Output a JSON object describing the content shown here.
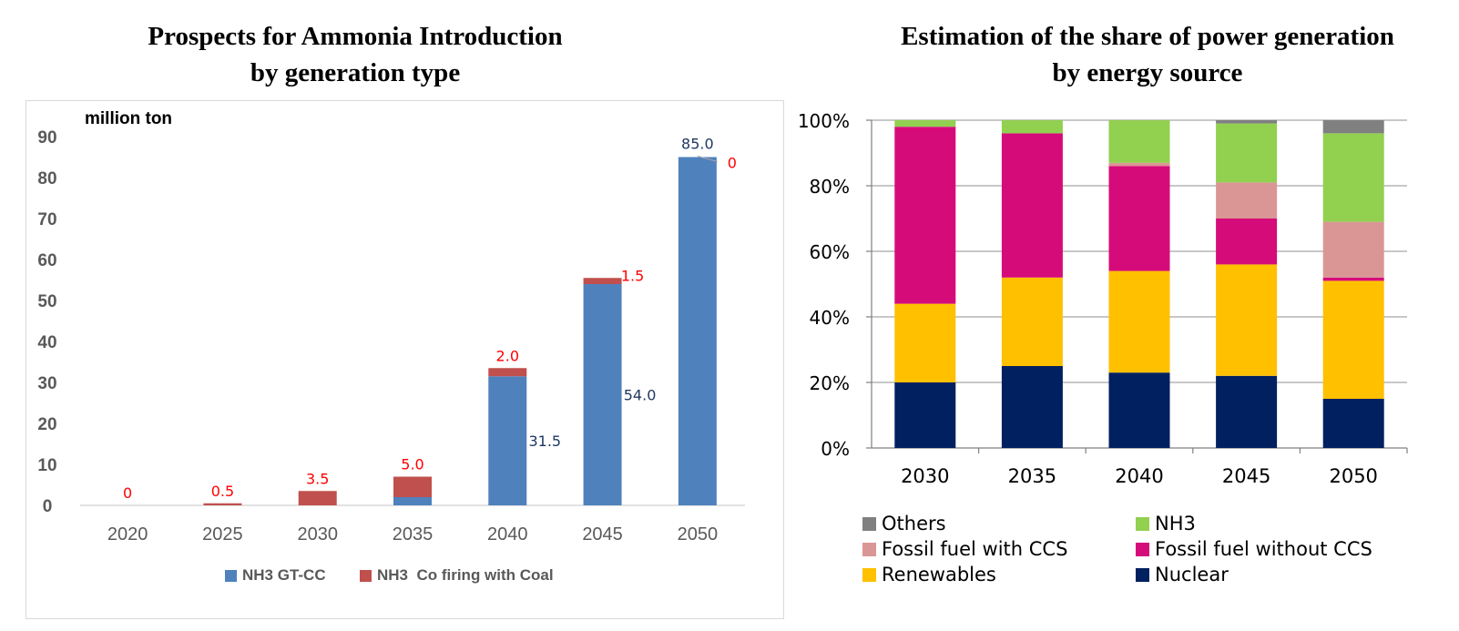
{
  "chart_data": [
    {
      "type": "bar",
      "stacked": true,
      "title_line1": "Prospects for Ammonia Introduction",
      "title_line2": "by generation type",
      "ylabel": "million ton",
      "ylim": [
        0,
        90
      ],
      "yticks": [
        0,
        10,
        20,
        30,
        40,
        50,
        60,
        70,
        80,
        90
      ],
      "categories": [
        "2020",
        "2025",
        "2030",
        "2035",
        "2040",
        "2045",
        "2050"
      ],
      "series": [
        {
          "name": "NH3 GT-CC",
          "color": "#4F81BD",
          "values": [
            0,
            0,
            0,
            2.0,
            31.5,
            54.0,
            85.0
          ]
        },
        {
          "name": "NH3  Co firing with Coal",
          "color": "#C0504D",
          "values": [
            0,
            0.5,
            3.5,
            5.0,
            2.0,
            1.5,
            0
          ]
        }
      ],
      "data_labels": {
        "gtcc": [
          "",
          "",
          "",
          "",
          "31.5",
          "54.0",
          "85.0"
        ],
        "cofire": [
          "0",
          "0.5",
          "3.5",
          "5.0",
          "2.0",
          "1.5",
          "0"
        ]
      },
      "label_colors": {
        "gtcc": "#1F3864",
        "cofire": "#FF0000"
      }
    },
    {
      "type": "bar",
      "stacked": true,
      "percent": true,
      "title_line1": "Estimation of the share of power generation",
      "title_line2": "by energy source",
      "ylim": [
        0,
        100
      ],
      "ytick_labels": [
        "0%",
        "20%",
        "40%",
        "60%",
        "80%",
        "100%"
      ],
      "categories": [
        "2030",
        "2035",
        "2040",
        "2045",
        "2050"
      ],
      "series": [
        {
          "name": "Nuclear",
          "color": "#002060",
          "values": [
            20,
            25,
            23,
            22,
            15
          ]
        },
        {
          "name": "Renewables",
          "color": "#FFC000",
          "values": [
            24,
            27,
            31,
            34,
            36
          ]
        },
        {
          "name": "Fossil fuel without CCS",
          "color": "#D60B7A",
          "values": [
            54,
            44,
            32,
            14,
            1
          ]
        },
        {
          "name": "Fossil fuel with CCS",
          "color": "#DA9694",
          "values": [
            0,
            0,
            1,
            11,
            17
          ]
        },
        {
          "name": "NH3",
          "color": "#92D050",
          "values": [
            2,
            4,
            13,
            18,
            27
          ]
        },
        {
          "name": "Others",
          "color": "#808080",
          "values": [
            0,
            0,
            0,
            1,
            4
          ]
        }
      ],
      "legend_order": [
        "Others",
        "NH3",
        "Fossil fuel with CCS",
        "Fossil fuel without CCS",
        "Renewables",
        "Nuclear"
      ]
    }
  ]
}
